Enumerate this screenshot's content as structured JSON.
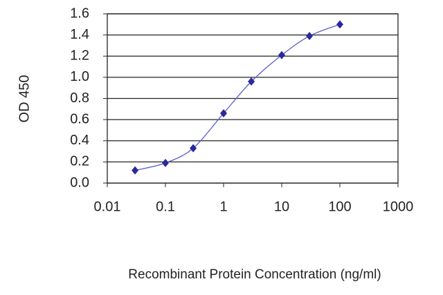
{
  "chart_data": {
    "type": "line",
    "x": [
      0.03,
      0.1,
      0.3,
      1,
      3,
      10,
      30,
      100
    ],
    "values": [
      0.12,
      0.19,
      0.33,
      0.66,
      0.96,
      1.21,
      1.39,
      1.5
    ],
    "color": "#2a2a9c",
    "xlabel": "Recombinant Protein Concentration (ng/ml)",
    "ylabel": "OD 450",
    "xlog": true,
    "xlim": [
      0.01,
      1000
    ],
    "xticks": [
      0.01,
      0.1,
      1,
      10,
      100,
      1000
    ],
    "ylim": [
      0,
      1.6
    ],
    "yticks": [
      {
        "value": 0,
        "label": "0.0"
      },
      0.2,
      0.4,
      0.6,
      0.8,
      {
        "value": 1,
        "label": "1.0"
      },
      1.2,
      1.4,
      1.6
    ],
    "grid": true
  }
}
